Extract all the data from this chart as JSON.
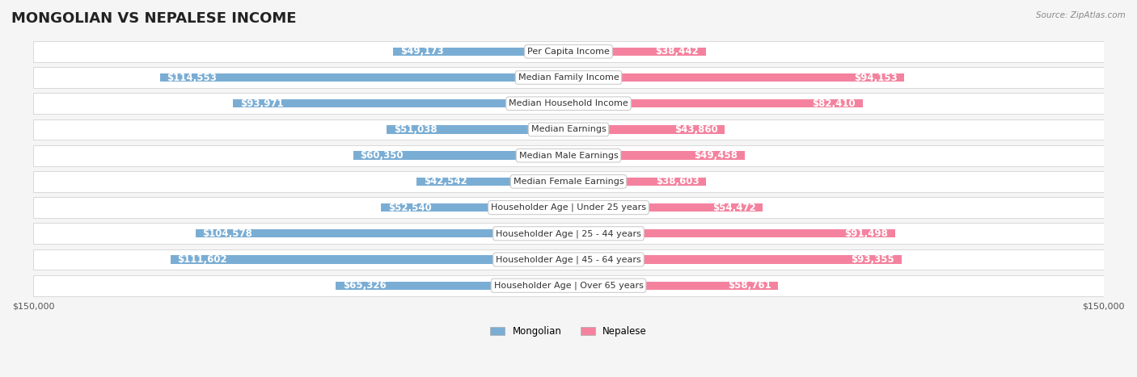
{
  "title": "MONGOLIAN VS NEPALESE INCOME",
  "source": "Source: ZipAtlas.com",
  "categories": [
    "Per Capita Income",
    "Median Family Income",
    "Median Household Income",
    "Median Earnings",
    "Median Male Earnings",
    "Median Female Earnings",
    "Householder Age | Under 25 years",
    "Householder Age | 25 - 44 years",
    "Householder Age | 45 - 64 years",
    "Householder Age | Over 65 years"
  ],
  "mongolian_values": [
    49173,
    114553,
    93971,
    51038,
    60350,
    42542,
    52540,
    104578,
    111602,
    65326
  ],
  "nepalese_values": [
    38442,
    94153,
    82410,
    43860,
    49458,
    38603,
    54472,
    91498,
    93355,
    58761
  ],
  "mongolian_labels": [
    "$49,173",
    "$114,553",
    "$93,971",
    "$51,038",
    "$60,350",
    "$42,542",
    "$52,540",
    "$104,578",
    "$111,602",
    "$65,326"
  ],
  "nepalese_labels": [
    "$38,442",
    "$94,153",
    "$82,410",
    "$43,860",
    "$49,458",
    "$38,603",
    "$54,472",
    "$91,498",
    "$93,355",
    "$58,761"
  ],
  "mongolian_color": "#7aadd4",
  "mongolian_color_dark": "#5b8fbf",
  "nepalese_color": "#f4829e",
  "nepalese_color_dark": "#e05a80",
  "max_value": 150000,
  "background_color": "#f5f5f5",
  "row_bg_color": "#ffffff",
  "row_alt_color": "#f0f0f0",
  "title_fontsize": 13,
  "label_fontsize": 8.5,
  "category_fontsize": 8,
  "axis_label_fontsize": 8
}
